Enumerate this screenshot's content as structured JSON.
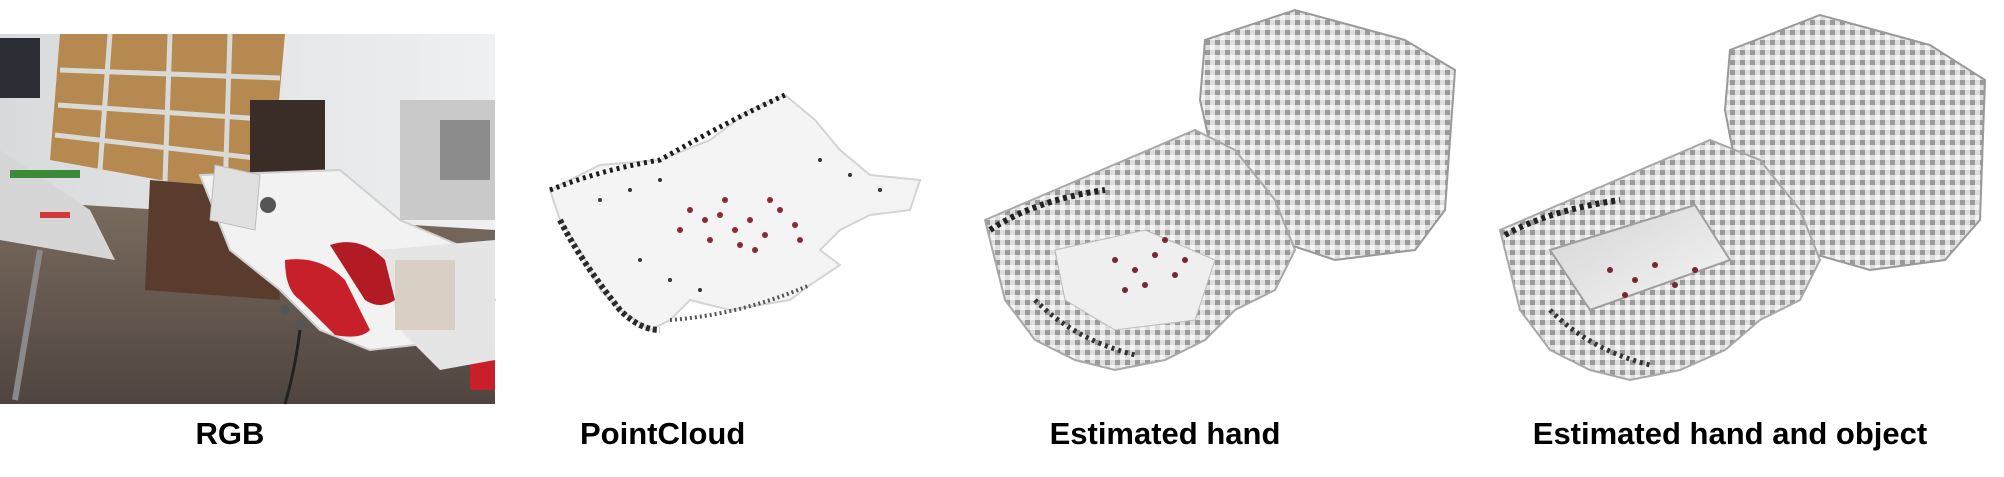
{
  "figure": {
    "panels": [
      {
        "id": "rgb",
        "caption": "RGB",
        "image": "rgb-photo-robot-hand-lab"
      },
      {
        "id": "pointcloud",
        "caption": "PointCloud",
        "image": "pointcloud-render"
      },
      {
        "id": "hand",
        "caption": "Estimated hand",
        "image": "voxel-hand-render"
      },
      {
        "id": "hand-object",
        "caption": "Estimated hand and object",
        "image": "voxel-hand-object-render"
      }
    ]
  },
  "colors": {
    "background": "#ffffff",
    "caption_text": "#000000",
    "robot_red": "#c8202a",
    "voxel_gray": "#b8b8b8"
  }
}
